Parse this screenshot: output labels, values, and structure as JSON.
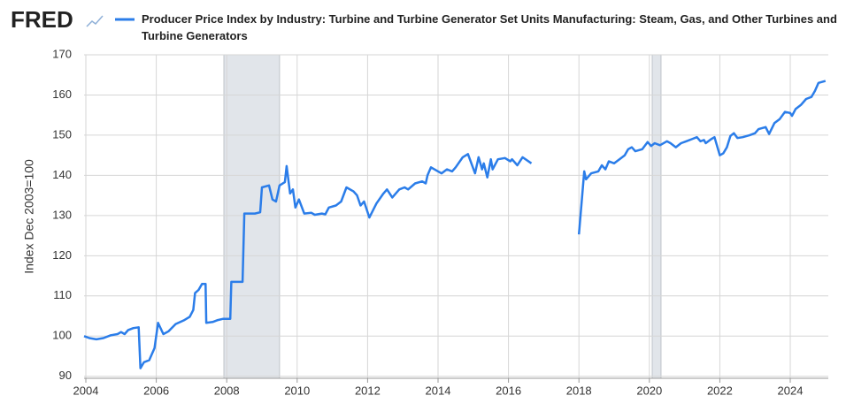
{
  "brand": "FRED",
  "chart_data": {
    "type": "line",
    "ylabel": "Index Dec 2003=100",
    "xlim": [
      2003.95,
      2025.08
    ],
    "ylim": [
      89.5,
      170
    ],
    "xticks": [
      2004,
      2006,
      2008,
      2010,
      2012,
      2014,
      2016,
      2018,
      2020,
      2022,
      2024
    ],
    "yticks": [
      90,
      100,
      110,
      120,
      130,
      140,
      150,
      160,
      170
    ],
    "grid": true,
    "recessions": [
      [
        2007.92,
        2009.5
      ],
      [
        2020.08,
        2020.33
      ]
    ],
    "x": [
      2003.95,
      2004.1,
      2004.3,
      2004.5,
      2004.7,
      2004.9,
      2005.0,
      2005.1,
      2005.2,
      2005.35,
      2005.5,
      2005.55,
      2005.65,
      2005.8,
      2005.95,
      2006.05,
      2006.2,
      2006.35,
      2006.55,
      2006.8,
      2006.95,
      2007.05,
      2007.1,
      2007.2,
      2007.3,
      2007.4,
      2007.42,
      2007.6,
      2007.75,
      2007.9,
      2008.1,
      2008.13,
      2008.45,
      2008.5,
      2008.8,
      2008.95,
      2009.0,
      2009.2,
      2009.3,
      2009.4,
      2009.5,
      2009.65,
      2009.7,
      2009.8,
      2009.88,
      2009.95,
      2010.05,
      2010.2,
      2010.4,
      2010.5,
      2010.7,
      2010.8,
      2010.9,
      2011.1,
      2011.25,
      2011.4,
      2011.6,
      2011.7,
      2011.8,
      2011.9,
      2012.05,
      2012.25,
      2012.45,
      2012.55,
      2012.7,
      2012.9,
      2013.05,
      2013.15,
      2013.35,
      2013.55,
      2013.65,
      2013.7,
      2013.8,
      2014.0,
      2014.1,
      2014.25,
      2014.4,
      2014.5,
      2014.7,
      2014.85,
      2015.05,
      2015.15,
      2015.25,
      2015.3,
      2015.4,
      2015.5,
      2015.55,
      2015.7,
      2015.9,
      2016.05,
      2016.1,
      2016.25,
      2016.4,
      2016.65,
      2017.3,
      2018.0,
      2018.15,
      2018.2,
      2018.35,
      2018.55,
      2018.65,
      2018.75,
      2018.85,
      2019.0,
      2019.15,
      2019.3,
      2019.4,
      2019.5,
      2019.6,
      2019.8,
      2019.95,
      2020.05,
      2020.15,
      2020.3,
      2020.5,
      2020.6,
      2020.75,
      2020.9,
      2021.05,
      2021.2,
      2021.35,
      2021.45,
      2021.55,
      2021.6,
      2021.75,
      2021.85,
      2022.0,
      2022.1,
      2022.2,
      2022.3,
      2022.4,
      2022.5,
      2022.65,
      2022.85,
      2023.0,
      2023.1,
      2023.3,
      2023.4,
      2023.55,
      2023.7,
      2023.85,
      2024.0,
      2024.05,
      2024.15,
      2024.3,
      2024.45,
      2024.6,
      2024.7,
      2024.8,
      2025.0
    ],
    "series": [
      {
        "name": "Producer Price Index by Industry: Turbine and Turbine Generator Set Units Manufacturing: Steam, Gas, and Other Turbines and Turbine Generators",
        "color": "#2b7de9",
        "values": [
          100,
          99.5,
          99.2,
          99.5,
          100.2,
          100.5,
          101,
          100.5,
          101.5,
          102,
          102.2,
          92,
          93.5,
          94,
          97,
          103.3,
          100.5,
          101.2,
          103,
          104,
          104.8,
          106.5,
          110.7,
          111.5,
          113,
          113,
          103.3,
          103.5,
          104,
          104.3,
          104.3,
          113.5,
          113.5,
          130.5,
          130.5,
          130.8,
          137,
          137.5,
          134,
          133.5,
          137.5,
          138.3,
          142.3,
          135.5,
          136.5,
          132,
          134,
          130.5,
          130.7,
          130.2,
          130.5,
          130.3,
          132,
          132.5,
          133.5,
          137,
          136,
          135,
          132.5,
          133.5,
          129.5,
          133,
          135.5,
          136.5,
          134.5,
          136.5,
          137,
          136.5,
          138,
          138.5,
          138,
          140,
          142,
          141,
          140.5,
          141.5,
          141,
          142,
          144.5,
          145.3,
          140.5,
          144.5,
          141.5,
          143,
          139.5,
          144,
          141.5,
          144,
          144.3,
          143.5,
          144,
          142.5,
          144.5,
          143,
          null,
          125.3,
          141,
          139,
          140.5,
          141,
          142.5,
          141.5,
          143.5,
          143,
          144,
          145,
          146.5,
          147,
          146,
          146.5,
          148.3,
          147.3,
          148,
          147.5,
          148.5,
          148,
          147,
          148,
          148.5,
          149,
          149.5,
          148.5,
          148.8,
          148,
          149,
          149.5,
          145,
          145.5,
          147,
          149.8,
          150.5,
          149.3,
          149.5,
          150,
          150.5,
          151.5,
          152,
          150.3,
          153,
          154,
          155.8,
          155.5,
          154.8,
          156.5,
          157.5,
          159,
          159.5,
          161,
          163,
          163.5
        ]
      }
    ]
  }
}
